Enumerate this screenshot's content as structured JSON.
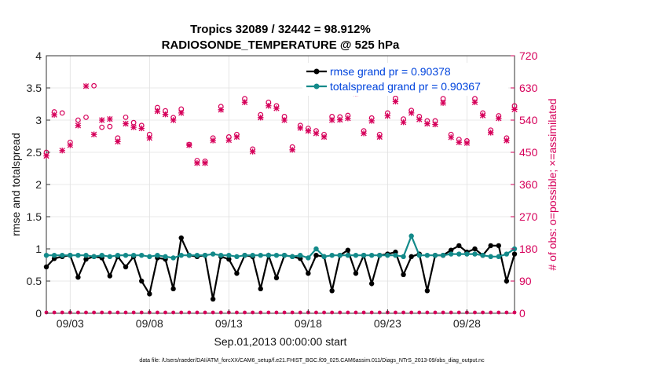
{
  "chart_data": {
    "type": "line",
    "title": "Tropics 32089 / 32442 = 98.912%",
    "subtitle": "RADIOSONDE_TEMPERATURE @ 525 hPa",
    "xlabel": "Sep.01,2013 00:00:00 start",
    "ylabel": "rmse and totalspread",
    "ylabel_right": "# of obs: o=possible; ×=assimilated",
    "footnote": "data file: /Users/raeder/DAI/ATM_forcXX/CAM6_setup/f.e21.FHIST_BGC.f09_025.CAM6assim.011/Diags_NTrS_2013-09/obs_diag_output.nc",
    "xlim": [
      1.5,
      31.0
    ],
    "ylim": [
      0,
      4
    ],
    "ylim_right": [
      0,
      720
    ],
    "xticks": [
      3,
      8,
      13,
      18,
      23,
      28
    ],
    "xtick_labels": [
      "09/03",
      "09/08",
      "09/13",
      "09/18",
      "09/23",
      "09/28"
    ],
    "yticks": [
      0,
      0.5,
      1,
      1.5,
      2,
      2.5,
      3,
      3.5,
      4
    ],
    "ytick_labels": [
      "0",
      "0.5",
      "1",
      "1.5",
      "2",
      "2.5",
      "3",
      "3.5",
      "4"
    ],
    "yticks_right": [
      0,
      90,
      180,
      270,
      360,
      450,
      540,
      630,
      720
    ],
    "ytick_labels_right": [
      "0",
      "90",
      "180",
      "270",
      "360",
      "450",
      "540",
      "630",
      "720"
    ],
    "grid": true,
    "legend_position": "top-right",
    "colors": {
      "rmse": "#000000",
      "spread": "#138a8a",
      "obs": "#d6005a",
      "legend_text": "#0044dd",
      "grid": "#e0e0e0"
    },
    "x": [
      1.5,
      2.0,
      2.5,
      3.0,
      3.5,
      4.0,
      4.5,
      5.0,
      5.5,
      6.0,
      6.5,
      7.0,
      7.5,
      8.0,
      8.5,
      9.0,
      9.5,
      10.0,
      10.5,
      11.0,
      11.5,
      12.0,
      12.5,
      13.0,
      13.5,
      14.0,
      14.5,
      15.0,
      15.5,
      16.0,
      16.5,
      17.0,
      17.5,
      18.0,
      18.5,
      19.0,
      19.5,
      20.0,
      20.5,
      21.0,
      21.5,
      22.0,
      22.5,
      23.0,
      23.5,
      24.0,
      24.5,
      25.0,
      25.5,
      26.0,
      26.5,
      27.0,
      27.5,
      28.0,
      28.5,
      29.0,
      29.5,
      30.0,
      30.5,
      31.0
    ],
    "series": [
      {
        "name": "rmse grand pr = 0.90378",
        "values": [
          0.72,
          0.85,
          0.88,
          0.9,
          0.56,
          0.84,
          0.88,
          0.86,
          0.58,
          0.88,
          0.72,
          0.88,
          0.5,
          0.3,
          0.86,
          0.84,
          0.38,
          1.17,
          0.9,
          0.88,
          0.9,
          0.22,
          0.88,
          0.84,
          0.62,
          0.9,
          0.88,
          0.38,
          0.9,
          0.55,
          0.9,
          0.88,
          0.85,
          0.62,
          0.9,
          0.88,
          0.35,
          0.9,
          0.98,
          0.62,
          0.9,
          0.46,
          0.9,
          0.92,
          0.95,
          0.6,
          0.88,
          0.92,
          0.35,
          0.9,
          0.9,
          0.98,
          1.05,
          0.95,
          1.0,
          0.9,
          1.05,
          1.05,
          0.5,
          0.92
        ],
        "color": "#000000"
      },
      {
        "name": "totalspread grand pr = 0.90367",
        "values": [
          0.9,
          0.9,
          0.9,
          0.9,
          0.9,
          0.9,
          0.88,
          0.9,
          0.88,
          0.9,
          0.9,
          0.9,
          0.9,
          0.88,
          0.9,
          0.88,
          0.86,
          0.9,
          0.9,
          0.9,
          0.9,
          0.92,
          0.9,
          0.9,
          0.88,
          0.9,
          0.9,
          0.9,
          0.9,
          0.9,
          0.9,
          0.88,
          0.9,
          0.86,
          1.0,
          0.88,
          0.9,
          0.9,
          0.9,
          0.9,
          0.9,
          0.9,
          0.9,
          0.9,
          0.9,
          0.88,
          1.2,
          0.9,
          0.9,
          0.9,
          0.9,
          0.92,
          0.92,
          0.92,
          0.92,
          0.9,
          0.88,
          0.88,
          0.92,
          1.0
        ],
        "color": "#138a8a"
      }
    ],
    "obs_possible": [
      450,
      563,
      560,
      478,
      540,
      548,
      636,
      520,
      522,
      490,
      548,
      533,
      525,
      500,
      575,
      566,
      547,
      571,
      472,
      427,
      425,
      490,
      578,
      493,
      500,
      600,
      459,
      555,
      590,
      580,
      550,
      465,
      525,
      517,
      510,
      500,
      550,
      549,
      553,
      626,
      510,
      546,
      500,
      560,
      601,
      543,
      567,
      550,
      538,
      538,
      600,
      500,
      486,
      482,
      600,
      560,
      512,
      552,
      490,
      580
    ],
    "obs_assimilated": [
      440,
      555,
      455,
      470,
      525,
      635,
      500,
      540,
      543,
      480,
      530,
      520,
      517,
      490,
      565,
      556,
      540,
      560,
      470,
      420,
      420,
      483,
      569,
      484,
      493,
      590,
      452,
      547,
      580,
      573,
      540,
      457,
      518,
      510,
      503,
      493,
      540,
      541,
      545,
      615,
      503,
      538,
      493,
      552,
      592,
      534,
      560,
      542,
      530,
      528,
      588,
      492,
      478,
      476,
      590,
      553,
      505,
      545,
      483,
      570
    ]
  }
}
